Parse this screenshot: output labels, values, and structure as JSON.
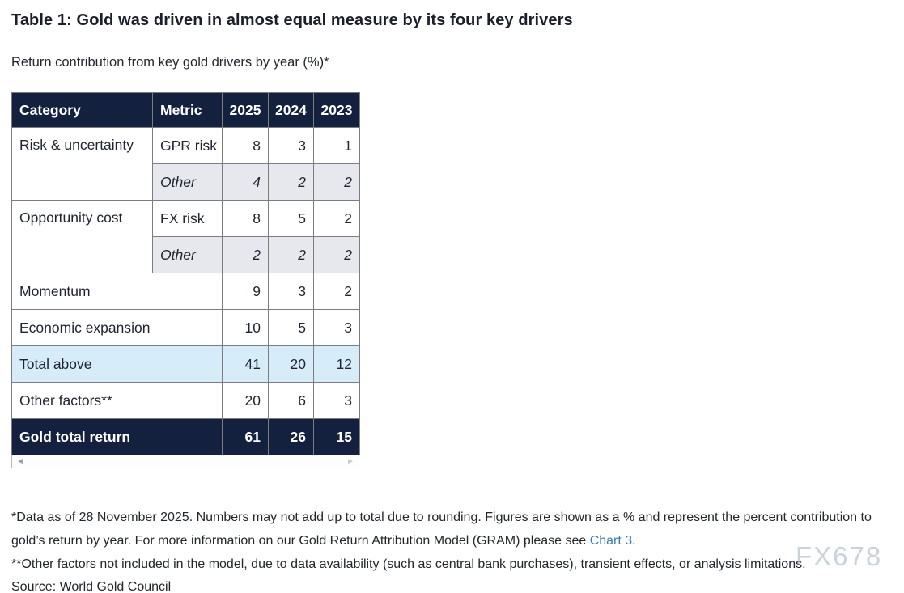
{
  "page": {
    "title": "Table 1: Gold was driven in almost equal measure by its four key drivers",
    "subtitle": "Return contribution from key gold drivers by year (%)*"
  },
  "table": {
    "headers": [
      "Category",
      "Metric",
      "2025",
      "2024",
      "2023"
    ],
    "rows": [
      {
        "category": "Risk & uncertainty",
        "metric": "GPR risk",
        "values": [
          "8",
          "3",
          "1"
        ]
      },
      {
        "metric": "Other",
        "values": [
          "4",
          "2",
          "2"
        ]
      },
      {
        "category": "Opportunity cost",
        "metric": "FX risk",
        "values": [
          "8",
          "5",
          "2"
        ]
      },
      {
        "metric": "Other",
        "values": [
          "2",
          "2",
          "2"
        ]
      },
      {
        "category": "Momentum",
        "values": [
          "9",
          "3",
          "2"
        ]
      },
      {
        "category": "Economic expansion",
        "values": [
          "10",
          "5",
          "3"
        ]
      },
      {
        "category": "Total above",
        "values": [
          "41",
          "20",
          "12"
        ]
      },
      {
        "category": "Other factors**",
        "values": [
          "20",
          "6",
          "3"
        ]
      },
      {
        "category": "Gold total return",
        "values": [
          "61",
          "26",
          "15"
        ]
      }
    ]
  },
  "chart_data": {
    "type": "table",
    "title": "Table 1: Gold was driven in almost equal measure by its four key drivers",
    "subtitle": "Return contribution from key gold drivers by year (%)*",
    "columns": [
      "Category",
      "Metric",
      "2025",
      "2024",
      "2023"
    ],
    "rows": [
      [
        "Risk & uncertainty",
        "GPR risk",
        8,
        3,
        1
      ],
      [
        "Risk & uncertainty",
        "Other",
        4,
        2,
        2
      ],
      [
        "Opportunity cost",
        "FX risk",
        8,
        5,
        2
      ],
      [
        "Opportunity cost",
        "Other",
        2,
        2,
        2
      ],
      [
        "Momentum",
        "",
        9,
        3,
        2
      ],
      [
        "Economic expansion",
        "",
        10,
        5,
        3
      ],
      [
        "Total above",
        "",
        41,
        20,
        12
      ],
      [
        "Other factors**",
        "",
        20,
        6,
        3
      ],
      [
        "Gold total return",
        "",
        61,
        26,
        15
      ]
    ]
  },
  "scrollbar": {
    "left_arrow": "◄",
    "right_arrow": "►"
  },
  "footnotes": {
    "note1_before": "*Data as of 28 November 2025. Numbers may not add up to total due to rounding. Figures are shown as a % and represent the percent contribution to gold’s return by year. For more information on our Gold Return Attribution Model (GRAM) please see ",
    "note1_link": "Chart 3",
    "note1_after": ".",
    "note2": "**Other factors not included in the model, due to data availability (such as central bank purchases), transient effects, or analysis limitations.",
    "source": "Source: World Gold Council"
  },
  "watermark": {
    "text": "FX678"
  },
  "colors": {
    "header_navy": "#14213e",
    "alt_row_gray": "#e6e8ed",
    "total_row_blue": "#d7ecf9",
    "link_blue": "#3f7cb1",
    "border_gray": "#7d7d7d"
  }
}
